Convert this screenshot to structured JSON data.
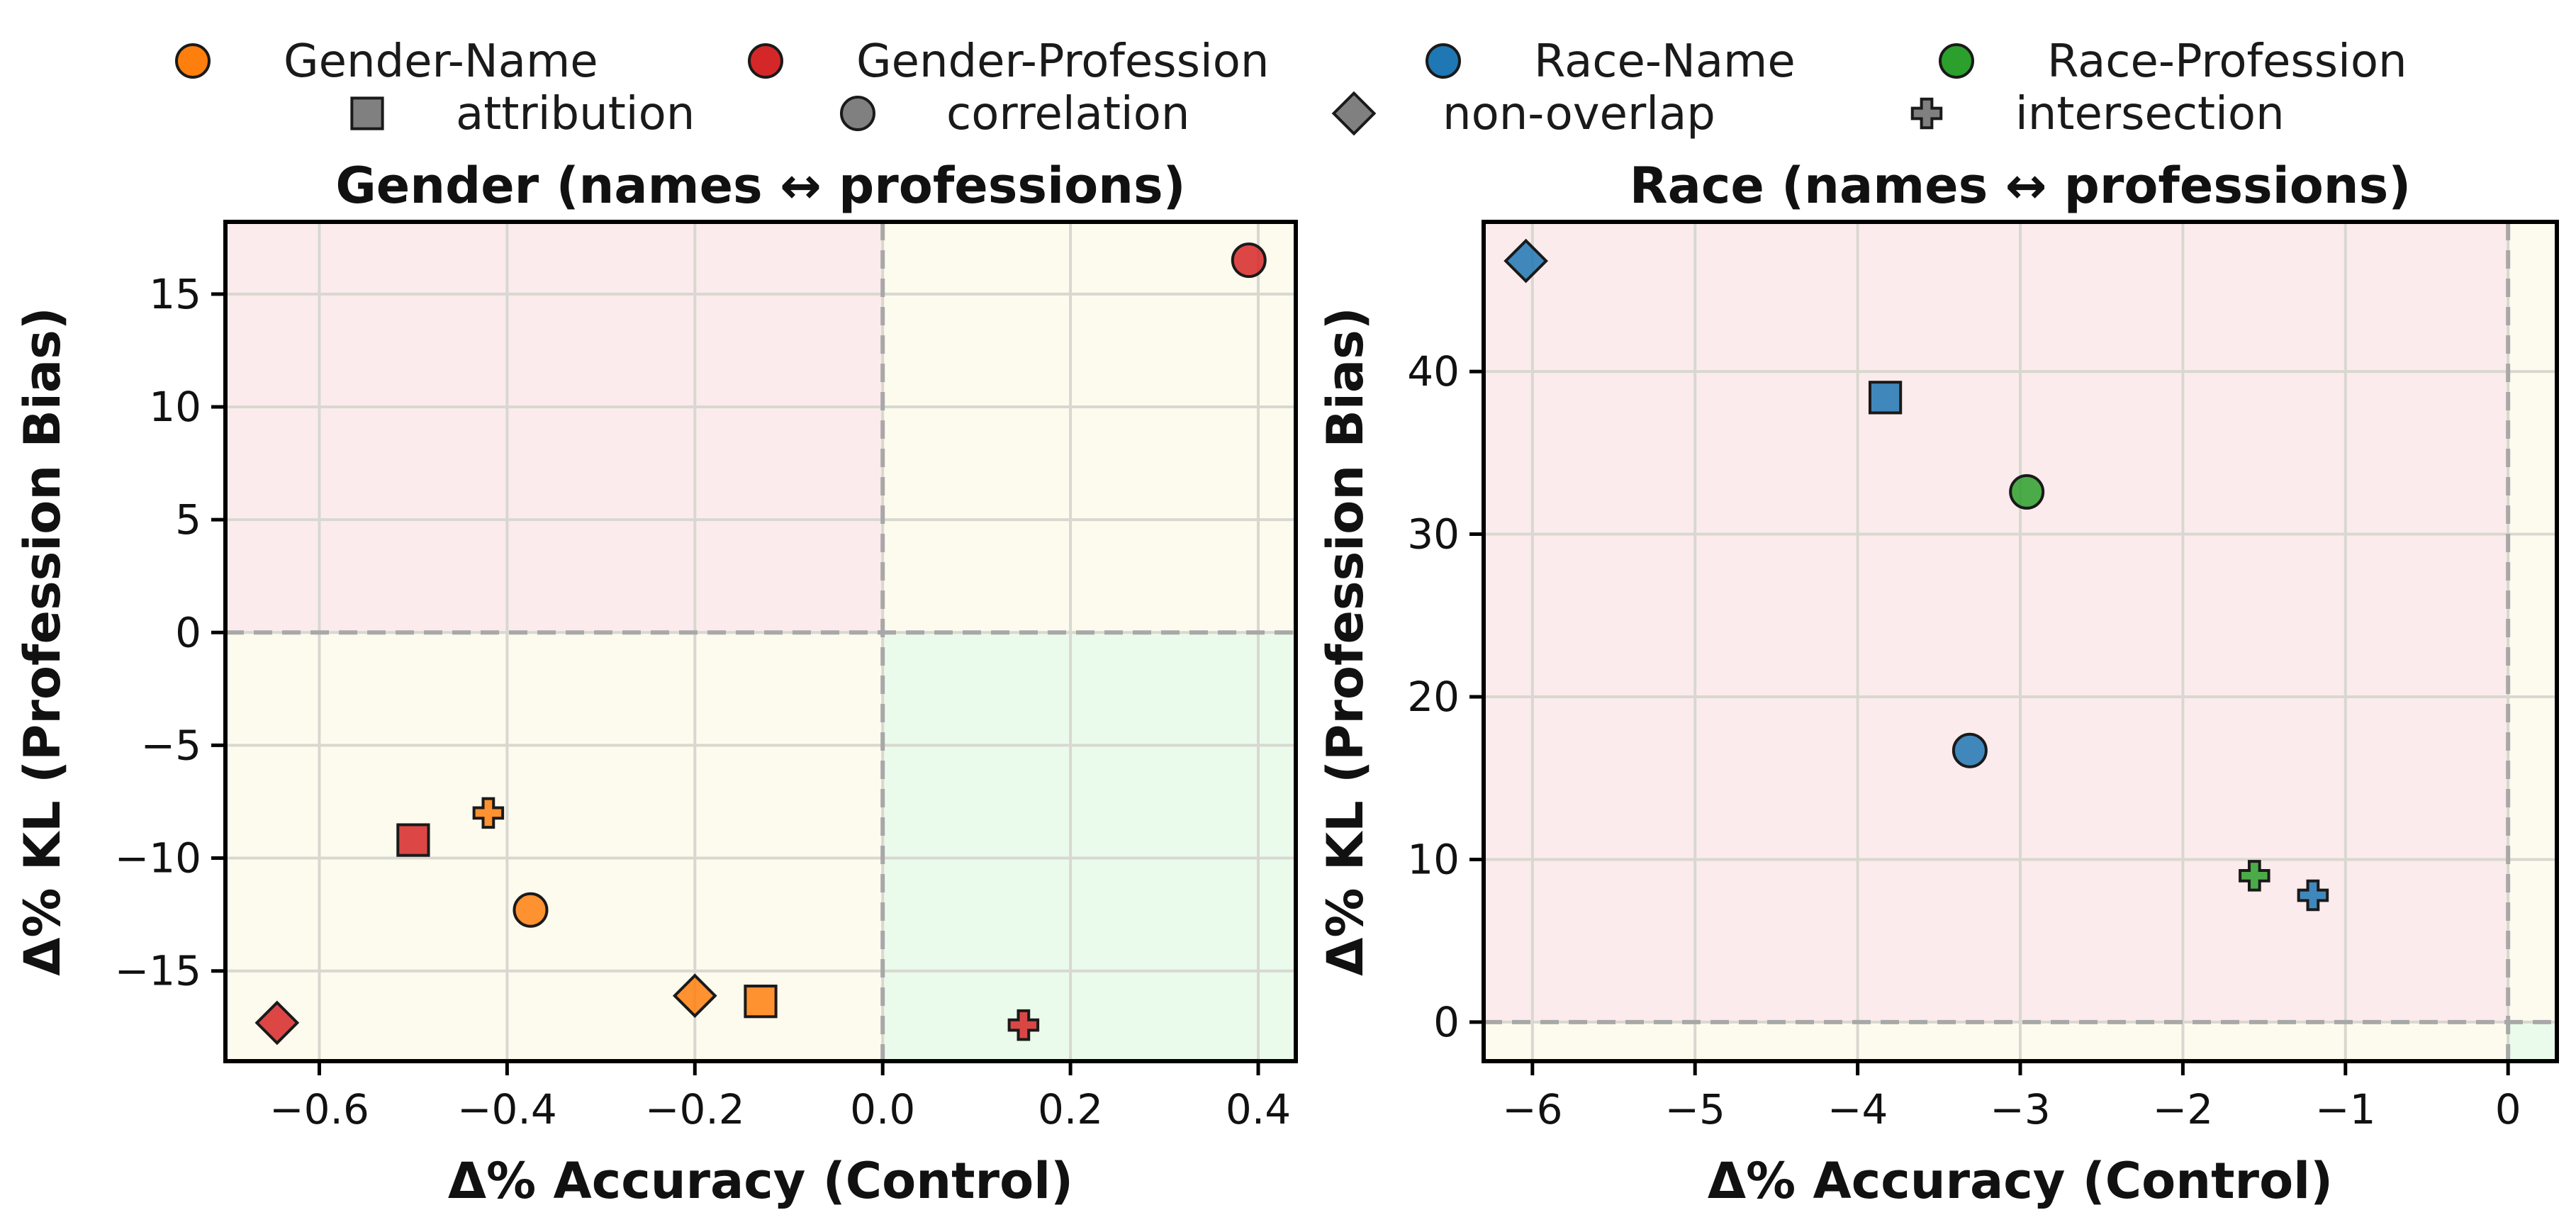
{
  "legend": {
    "series": [
      {
        "label": "Gender-Name",
        "color": "#ff7f0e"
      },
      {
        "label": "Gender-Profession",
        "color": "#d62728"
      },
      {
        "label": "Race-Name",
        "color": "#1f77b4"
      },
      {
        "label": "Race-Profession",
        "color": "#2ca02c"
      }
    ],
    "methods": [
      {
        "label": "attribution",
        "marker": "square"
      },
      {
        "label": "correlation",
        "marker": "circle"
      },
      {
        "label": "non-overlap",
        "marker": "diamond"
      },
      {
        "label": "intersection",
        "marker": "plus"
      }
    ]
  },
  "chart_data": [
    {
      "type": "scatter",
      "title": "Gender (names ↔ professions)",
      "xlabel": "Δ% Accuracy (Control)",
      "ylabel": "Δ% KL (Profession Bias)",
      "xlim": [
        -0.7,
        0.44
      ],
      "ylim": [
        -19,
        18.2
      ],
      "xticks": [
        -0.6,
        -0.4,
        -0.2,
        0.0,
        0.2,
        0.4
      ],
      "xtick_labels": [
        "−0.6",
        "−0.4",
        "−0.2",
        "0.0",
        "0.2",
        "0.4"
      ],
      "yticks": [
        -15,
        -10,
        -5,
        0,
        5,
        10,
        15
      ],
      "ytick_labels": [
        "−15",
        "−10",
        "−5",
        "0",
        "5",
        "10",
        "15"
      ],
      "grid": true,
      "quadrants": {
        "top_left": "#fcebec",
        "top_right": "#fdfbee",
        "bottom_left": "#fdfbee",
        "bottom_right": "#eafbec"
      },
      "points": [
        {
          "series": "Gender-Profession",
          "method": "correlation",
          "x": 0.39,
          "y": 16.5
        },
        {
          "series": "Gender-Name",
          "method": "intersection",
          "x": -0.42,
          "y": -8.0
        },
        {
          "series": "Gender-Profession",
          "method": "attribution",
          "x": -0.5,
          "y": -9.2
        },
        {
          "series": "Gender-Name",
          "method": "correlation",
          "x": -0.375,
          "y": -12.3
        },
        {
          "series": "Gender-Name",
          "method": "non-overlap",
          "x": -0.2,
          "y": -16.1
        },
        {
          "series": "Gender-Name",
          "method": "attribution",
          "x": -0.13,
          "y": -16.35
        },
        {
          "series": "Gender-Profession",
          "method": "non-overlap",
          "x": -0.645,
          "y": -17.3
        },
        {
          "series": "Gender-Profession",
          "method": "intersection",
          "x": 0.15,
          "y": -17.4
        }
      ]
    },
    {
      "type": "scatter",
      "title": "Race (names ↔ professions)",
      "xlabel": "Δ% Accuracy (Control)",
      "ylabel": "Δ% KL (Profession Bias)",
      "xlim": [
        -6.3,
        0.3
      ],
      "ylim": [
        -2.4,
        49.2
      ],
      "xticks": [
        -6,
        -5,
        -4,
        -3,
        -2,
        -1,
        0
      ],
      "xtick_labels": [
        "−6",
        "−5",
        "−4",
        "−3",
        "−2",
        "−1",
        "0"
      ],
      "yticks": [
        0,
        10,
        20,
        30,
        40
      ],
      "ytick_labels": [
        "0",
        "10",
        "20",
        "30",
        "40"
      ],
      "grid": true,
      "quadrants": {
        "top_left": "#fcebec",
        "top_right": "#fdfbee",
        "bottom_left": "#fdfbee",
        "bottom_right": "#eafbec"
      },
      "points": [
        {
          "series": "Race-Name",
          "method": "non-overlap",
          "x": -6.04,
          "y": 46.8
        },
        {
          "series": "Race-Name",
          "method": "attribution",
          "x": -3.83,
          "y": 38.4
        },
        {
          "series": "Race-Profession",
          "method": "correlation",
          "x": -2.96,
          "y": 32.6
        },
        {
          "series": "Race-Name",
          "method": "correlation",
          "x": -3.31,
          "y": 16.7
        },
        {
          "series": "Race-Profession",
          "method": "intersection",
          "x": -1.56,
          "y": 9.0
        },
        {
          "series": "Race-Name",
          "method": "intersection",
          "x": -1.2,
          "y": 7.8
        }
      ]
    }
  ]
}
